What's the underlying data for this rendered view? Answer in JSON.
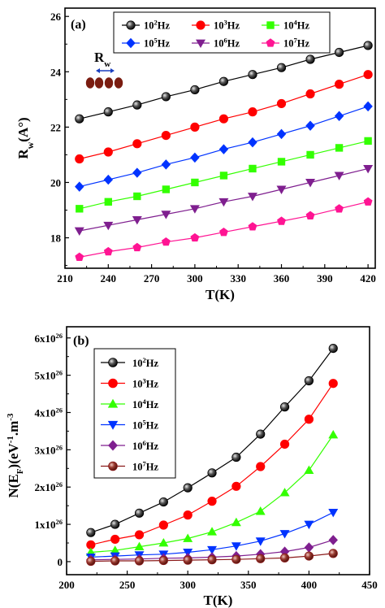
{
  "chart_data": [
    {
      "type": "line",
      "panel_label": "(a)",
      "xlabel": "T(K)",
      "ylabel": "Rw(A°)",
      "ylabel_main": "R",
      "ylabel_sub": "w",
      "ylabel_unit": "(A°)",
      "xlim": [
        210,
        425
      ],
      "ylim": [
        16.9,
        26.3
      ],
      "xticks": [
        210,
        240,
        270,
        300,
        330,
        360,
        390,
        420
      ],
      "yticks": [
        18,
        20,
        22,
        24,
        26
      ],
      "legend_position": "top",
      "inset_label": "Rw",
      "inset_label_main": "R",
      "inset_label_sub": "w",
      "x": [
        220,
        240,
        260,
        280,
        300,
        320,
        340,
        360,
        380,
        400,
        420
      ],
      "series": [
        {
          "name": "10²Hz",
          "name_base": "10",
          "name_exp": "2",
          "name_unit": "Hz",
          "color": "#000000",
          "marker": "circle-shaded",
          "values": [
            22.3,
            22.55,
            22.8,
            23.1,
            23.35,
            23.65,
            23.9,
            24.15,
            24.45,
            24.7,
            24.95
          ]
        },
        {
          "name": "10³Hz",
          "name_base": "10",
          "name_exp": "3",
          "name_unit": "Hz",
          "color": "#ff0000",
          "marker": "circle",
          "values": [
            20.85,
            21.1,
            21.4,
            21.7,
            22.0,
            22.3,
            22.55,
            22.85,
            23.2,
            23.55,
            23.9
          ]
        },
        {
          "name": "10⁴Hz",
          "name_base": "10",
          "name_exp": "4",
          "name_unit": "Hz",
          "color": "#33ff00",
          "marker": "square",
          "values": [
            19.05,
            19.3,
            19.5,
            19.75,
            20.0,
            20.25,
            20.5,
            20.75,
            21.0,
            21.25,
            21.5
          ]
        },
        {
          "name": "10⁵Hz",
          "name_base": "10",
          "name_exp": "5",
          "name_unit": "Hz",
          "color": "#0033ff",
          "marker": "diamond",
          "values": [
            19.85,
            20.1,
            20.35,
            20.65,
            20.9,
            21.2,
            21.45,
            21.75,
            22.05,
            22.4,
            22.75
          ]
        },
        {
          "name": "10⁶Hz",
          "name_base": "10",
          "name_exp": "6",
          "name_unit": "Hz",
          "color": "#7f1f8f",
          "marker": "triangle-down",
          "values": [
            18.25,
            18.45,
            18.65,
            18.85,
            19.05,
            19.3,
            19.5,
            19.75,
            20.0,
            20.25,
            20.5
          ]
        },
        {
          "name": "10⁷Hz",
          "name_base": "10",
          "name_exp": "7",
          "name_unit": "Hz",
          "color": "#ff1493",
          "marker": "pentagon",
          "values": [
            17.3,
            17.5,
            17.65,
            17.85,
            18.0,
            18.2,
            18.4,
            18.6,
            18.8,
            19.05,
            19.3
          ]
        }
      ]
    },
    {
      "type": "line",
      "panel_label": "(b)",
      "xlabel": "T(K)",
      "ylabel": "N(EF)(eV-1.m-3",
      "ylabel_parts": [
        "N(E",
        "F",
        ")(eV",
        "-1",
        ".m",
        "-3"
      ],
      "xlim": [
        200,
        450
      ],
      "ylim": [
        -0.35,
        6.3
      ],
      "xticks": [
        200,
        250,
        300,
        350,
        400,
        450
      ],
      "yticks": [
        0,
        1,
        2,
        3,
        4,
        5,
        6
      ],
      "ytick_labels": [
        "0",
        "1x10",
        "2x10",
        "3x10",
        "4x10",
        "5x10",
        "6x10"
      ],
      "ytick_exponent": "26",
      "legend_position": "upper-left",
      "x": [
        220,
        240,
        260,
        280,
        300,
        320,
        340,
        360,
        380,
        400,
        420
      ],
      "series": [
        {
          "name": "10²Hz",
          "name_base": "10",
          "name_exp": "2",
          "name_unit": "Hz",
          "color": "#000000",
          "marker": "circle-shaded",
          "values": [
            0.78,
            1.0,
            1.3,
            1.6,
            1.98,
            2.38,
            2.8,
            3.42,
            4.15,
            4.85,
            5.72
          ]
        },
        {
          "name": "10³Hz",
          "name_base": "10",
          "name_exp": "3",
          "name_unit": "Hz",
          "color": "#ff0000",
          "marker": "circle",
          "values": [
            0.45,
            0.6,
            0.72,
            0.98,
            1.25,
            1.62,
            2.02,
            2.55,
            3.15,
            3.82,
            4.78
          ]
        },
        {
          "name": "10⁴Hz",
          "name_base": "10",
          "name_exp": "4",
          "name_unit": "Hz",
          "color": "#33ff00",
          "marker": "triangle",
          "values": [
            0.25,
            0.3,
            0.4,
            0.5,
            0.62,
            0.8,
            1.05,
            1.35,
            1.85,
            2.45,
            3.4
          ]
        },
        {
          "name": "10⁵Hz",
          "name_base": "10",
          "name_exp": "5",
          "name_unit": "Hz",
          "color": "#0033ff",
          "marker": "triangle-down",
          "values": [
            0.12,
            0.15,
            0.18,
            0.2,
            0.25,
            0.32,
            0.42,
            0.55,
            0.75,
            1.0,
            1.32
          ]
        },
        {
          "name": "10⁶Hz",
          "name_base": "10",
          "name_exp": "6",
          "name_unit": "Hz",
          "color": "#7f1f8f",
          "marker": "diamond",
          "values": [
            0.05,
            0.06,
            0.07,
            0.09,
            0.1,
            0.12,
            0.15,
            0.2,
            0.27,
            0.38,
            0.58
          ]
        },
        {
          "name": "10⁷Hz",
          "name_base": "10",
          "name_exp": "7",
          "name_unit": "Hz",
          "color": "#8b1a1a",
          "marker": "circle-shaded",
          "values": [
            0.01,
            0.02,
            0.02,
            0.03,
            0.04,
            0.05,
            0.06,
            0.08,
            0.1,
            0.15,
            0.22
          ]
        }
      ]
    }
  ]
}
